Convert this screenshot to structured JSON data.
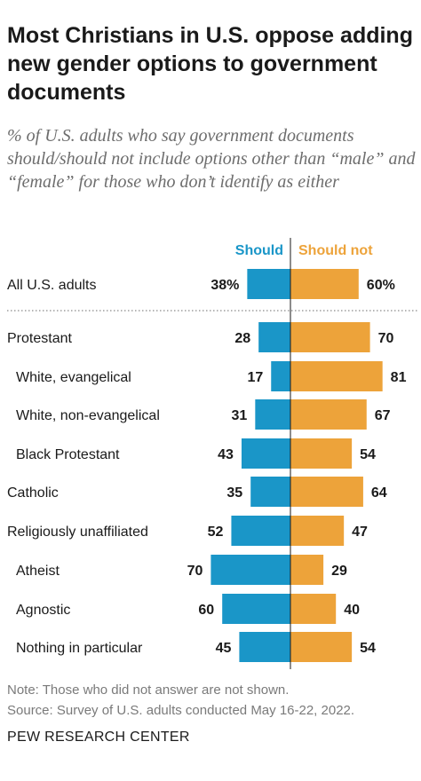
{
  "title": "Most Christians in U.S. oppose adding new gender options to government documents",
  "subtitle": "% of U.S. adults who say government documents should/should not include options other than “male” and “female” for those who don’t identify as either",
  "note": "Note: Those who did not answer are not shown.",
  "source": "Source: Survey of U.S. adults conducted May 16-22, 2022.",
  "brand": "PEW RESEARCH CENTER",
  "colors": {
    "should": "#1a96c8",
    "should_not": "#eda33a"
  },
  "chart_data": {
    "type": "bar",
    "orientation": "horizontal-diverging",
    "categories": [
      "All U.S. adults",
      "Protestant",
      "White, evangelical",
      "White, non-evangelical",
      "Black Protestant",
      "Catholic",
      "Religiously unaffiliated",
      "Atheist",
      "Agnostic",
      "Nothing in particular"
    ],
    "indented": [
      false,
      false,
      true,
      true,
      true,
      false,
      false,
      true,
      true,
      true
    ],
    "series": [
      {
        "name": "Should",
        "values": [
          38,
          28,
          17,
          31,
          43,
          35,
          52,
          70,
          60,
          45
        ],
        "labels": [
          "38%",
          "28",
          "17",
          "31",
          "43",
          "35",
          "52",
          "70",
          "60",
          "45"
        ]
      },
      {
        "name": "Should not",
        "values": [
          60,
          70,
          81,
          67,
          54,
          64,
          47,
          29,
          40,
          54
        ],
        "labels": [
          "60%",
          "70",
          "81",
          "67",
          "54",
          "64",
          "47",
          "29",
          "40",
          "54"
        ]
      }
    ],
    "legend": "top"
  }
}
